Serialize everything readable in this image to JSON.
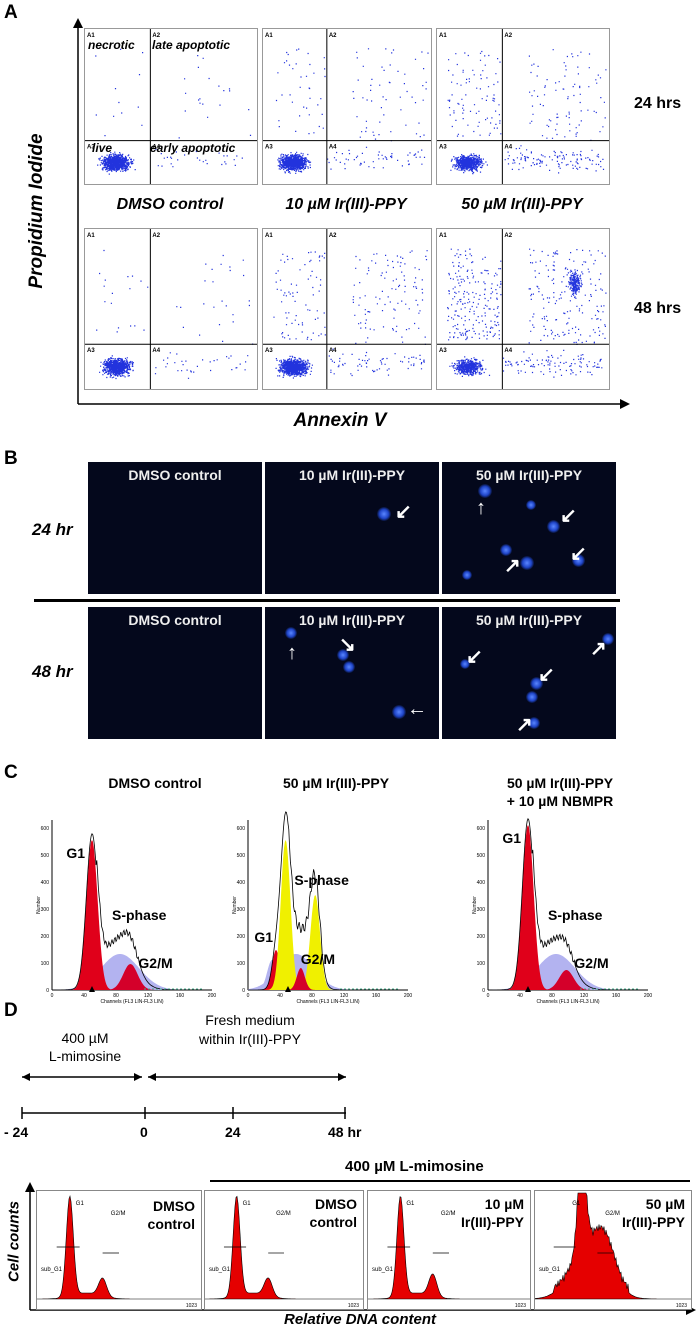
{
  "panelA": {
    "letter": "A",
    "ylabel": "Propidium Iodide",
    "xlabel": "Annexin V",
    "columns": [
      "DMSO control",
      "10 µM Ir(III)-PPY",
      "50 µM Ir(III)-PPY"
    ],
    "rows": [
      "24 hrs",
      "48 hrs"
    ],
    "quadrant_ids": [
      "A1",
      "A2",
      "A3",
      "A4"
    ],
    "quadrant_names": {
      "q1": "necrotic",
      "q2": "late apoptotic",
      "q3": "live",
      "q4": "early apoptotic"
    }
  },
  "panelB": {
    "letter": "B",
    "rows": [
      "24 hr",
      "48 hr"
    ],
    "columns": [
      "DMSO control",
      "10 µM Ir(III)-PPY",
      "50 µM Ir(III)-PPY"
    ]
  },
  "panelC": {
    "letter": "C",
    "titles": [
      "DMSO control",
      "50 µM Ir(III)-PPY",
      "50 µM Ir(III)-PPY\n+ 10 µM NBMPR"
    ],
    "title3_line1": "50 µM Ir(III)-PPY",
    "title3_line2": "+ 10 µM NBMPR",
    "peak_labels": {
      "g1": "G1",
      "s": "S-phase",
      "g2": "G2/M"
    },
    "axis_ylabel": "Number",
    "axis_xlabel": "Channels (FL3 LIN-FL3 LIN)",
    "xticks": [
      "0",
      "40",
      "80",
      "120",
      "160",
      "200"
    ],
    "yticks": [
      "0",
      "100",
      "200",
      "300",
      "400",
      "500",
      "600"
    ]
  },
  "panelD": {
    "letter": "D",
    "timeline": {
      "label1_line1": "400 µM",
      "label1_line2": "L-mimosine",
      "label2_line1": "Fresh medium",
      "label2_line2": "within Ir(III)-PPY",
      "ticks": [
        "- 24",
        "0",
        "24",
        "48 hr"
      ]
    },
    "bracket_label": "400 µM L-mimosine",
    "ylabel": "Cell counts",
    "xlabel": "Relative DNA content",
    "boxes": [
      {
        "line1": "DMSO",
        "line2": "control"
      },
      {
        "line1": "DMSO",
        "line2": "control"
      },
      {
        "line1": "10 µM",
        "line2": "Ir(III)-PPY"
      },
      {
        "line1": "50 µM",
        "line2": "Ir(III)-PPY"
      }
    ],
    "peak_g1": "G1",
    "peak_g2": "G2/M",
    "subg1": "sub_G1",
    "xmax": "1023"
  }
}
